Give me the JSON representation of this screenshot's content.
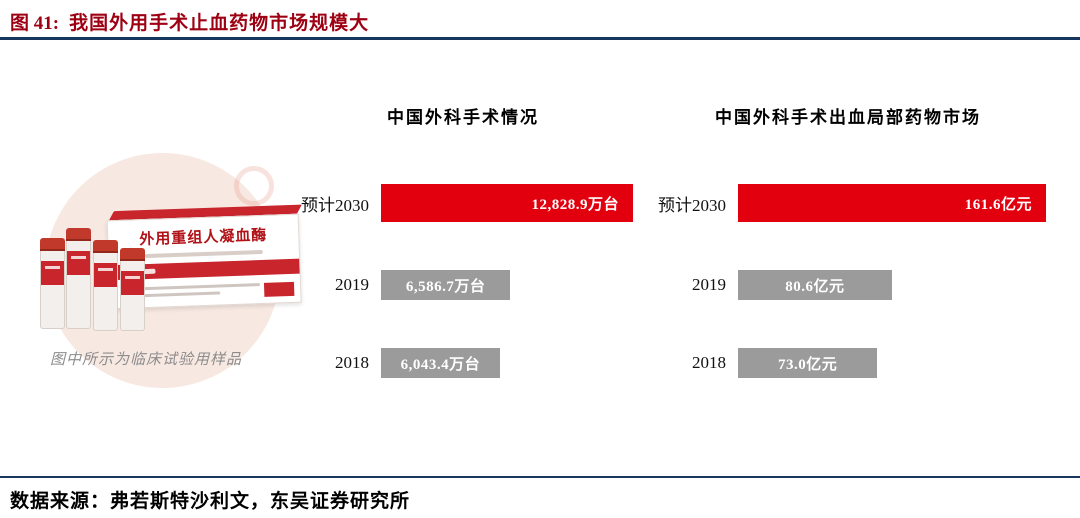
{
  "figure": {
    "label": "图 41:",
    "title": "我国外用手术止血药物市场规模大"
  },
  "product": {
    "box_title": "外用重组人凝血酶",
    "caption": "图中所示为临床试验用样品"
  },
  "source": "数据来源：弗若斯特沙利文，东吴证券研究所",
  "colors": {
    "accent_red": "#e2000f",
    "bar_gray": "#9b9b9b",
    "title_red": "#9e0013",
    "rule_navy": "#17375e",
    "blob_pink": "#f8e8e2"
  },
  "chart_data": [
    {
      "type": "bar",
      "orientation": "horizontal",
      "title": "中国外科手术情况",
      "categories": [
        "预计2030",
        "2019",
        "2018"
      ],
      "values": [
        12828.9,
        6586.7,
        6043.4
      ],
      "value_labels": [
        "12,828.9万台",
        "6,586.7万台",
        "6,043.4万台"
      ],
      "unit": "万台",
      "xlim": [
        0,
        12828.9
      ],
      "grid": false,
      "legend": "none",
      "colors": [
        "#e2000f",
        "#9b9b9b",
        "#9b9b9b"
      ]
    },
    {
      "type": "bar",
      "orientation": "horizontal",
      "title": "中国外科手术出血局部药物市场",
      "categories": [
        "预计2030",
        "2019",
        "2018"
      ],
      "values": [
        161.6,
        80.6,
        73.0
      ],
      "value_labels": [
        "161.6亿元",
        "80.6亿元",
        "73.0亿元"
      ],
      "unit": "亿元",
      "xlim": [
        0,
        161.6
      ],
      "grid": false,
      "legend": "none",
      "colors": [
        "#e2000f",
        "#9b9b9b",
        "#9b9b9b"
      ]
    }
  ]
}
